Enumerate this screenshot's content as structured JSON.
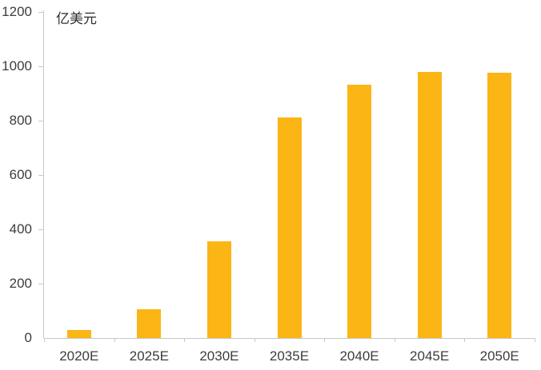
{
  "chart_data": {
    "type": "bar",
    "title": "",
    "unit_label": "亿美元",
    "categories": [
      "2020E",
      "2025E",
      "2030E",
      "2035E",
      "2040E",
      "2045E",
      "2050E"
    ],
    "values": [
      30,
      107,
      356,
      812,
      932,
      980,
      977
    ],
    "xlabel": "",
    "ylabel": "亿美元",
    "ylim": [
      0,
      1200
    ],
    "yticks": [
      0,
      200,
      400,
      600,
      800,
      1000,
      1200
    ],
    "grid": false,
    "legend": "none",
    "bar_color": "#fbb514",
    "axis_color": "#c8c8c8",
    "text_color": "#3d3d3d"
  }
}
